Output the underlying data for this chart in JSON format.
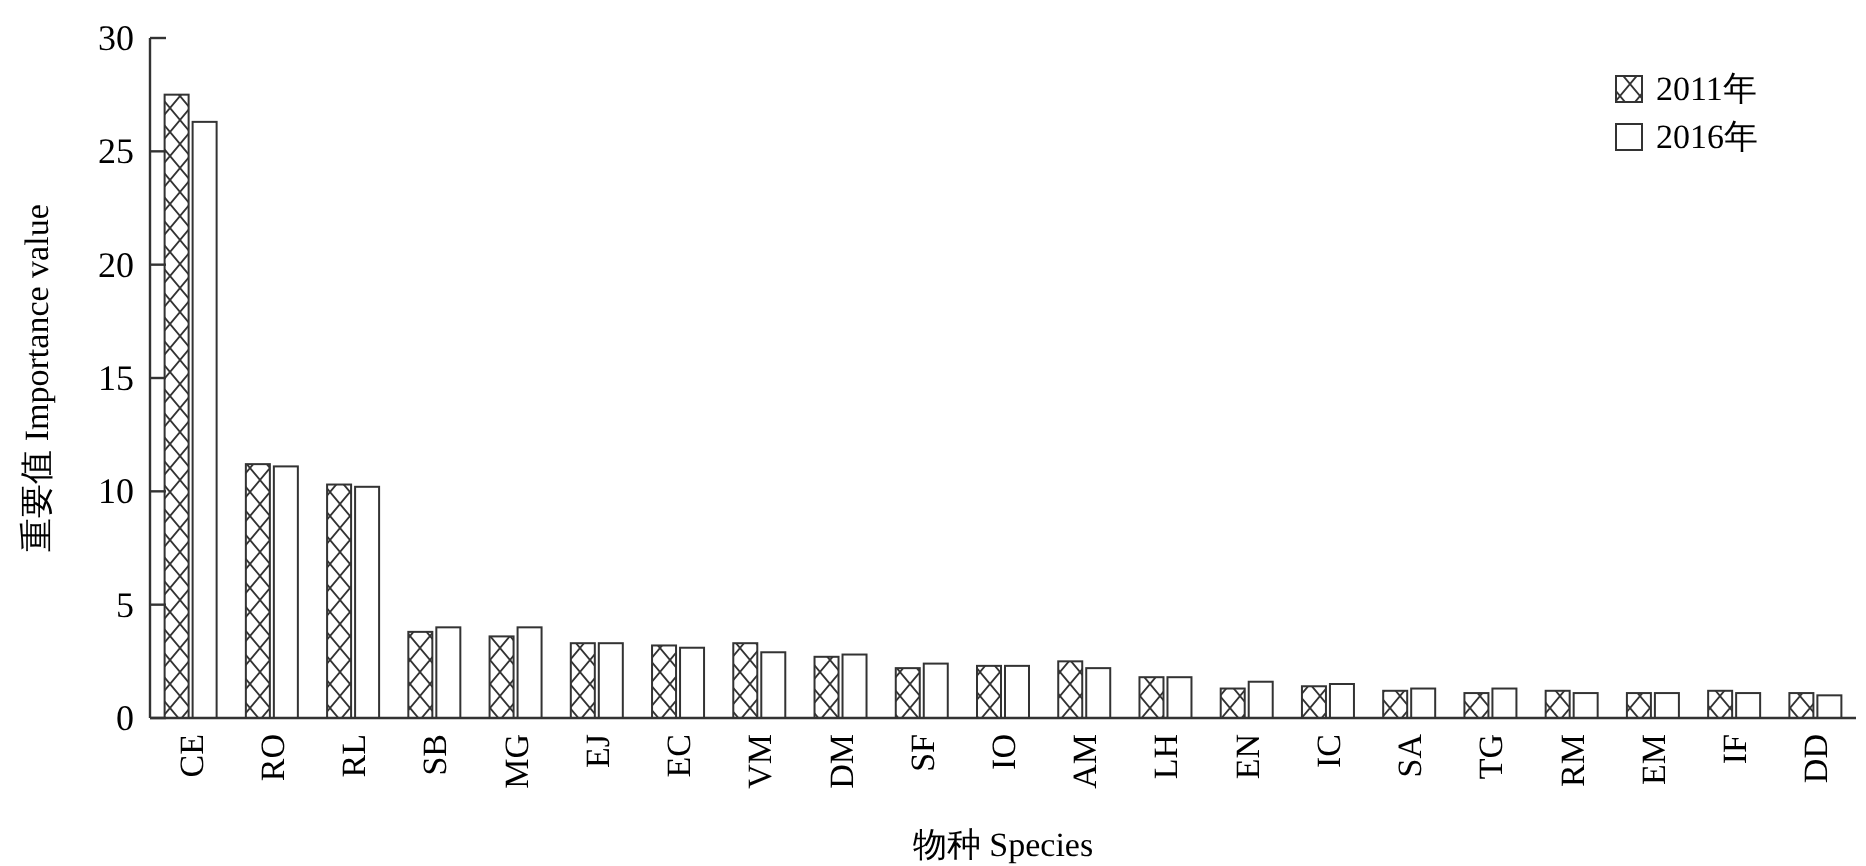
{
  "chart_data": {
    "type": "bar",
    "xlabel": "物种 Species",
    "ylabel": "重要值 Importance value",
    "categories": [
      "CE",
      "RO",
      "RL",
      "SB",
      "MG",
      "EJ",
      "EC",
      "VM",
      "DM",
      "SF",
      "IO",
      "AM",
      "LH",
      "EN",
      "IC",
      "SA",
      "TG",
      "RM",
      "EM",
      "IF",
      "DD"
    ],
    "series": [
      {
        "name": "2011年",
        "color": "#333333",
        "values": [
          27.5,
          11.2,
          10.3,
          3.8,
          3.6,
          3.3,
          3.2,
          3.3,
          2.7,
          2.2,
          2.3,
          2.5,
          1.8,
          1.3,
          1.4,
          1.2,
          1.1,
          1.2,
          1.1,
          1.2,
          1.1
        ]
      },
      {
        "name": "2016年",
        "color": "#ffffff",
        "values": [
          26.3,
          11.1,
          10.2,
          4.0,
          4.0,
          3.3,
          3.1,
          2.9,
          2.8,
          2.4,
          2.3,
          2.2,
          1.8,
          1.6,
          1.5,
          1.3,
          1.3,
          1.1,
          1.1,
          1.1,
          1.0
        ]
      }
    ],
    "ylim": [
      0,
      30
    ],
    "yticks": [
      0,
      5,
      10,
      15,
      20,
      25,
      30
    ],
    "grid": false,
    "legend": "top right"
  }
}
